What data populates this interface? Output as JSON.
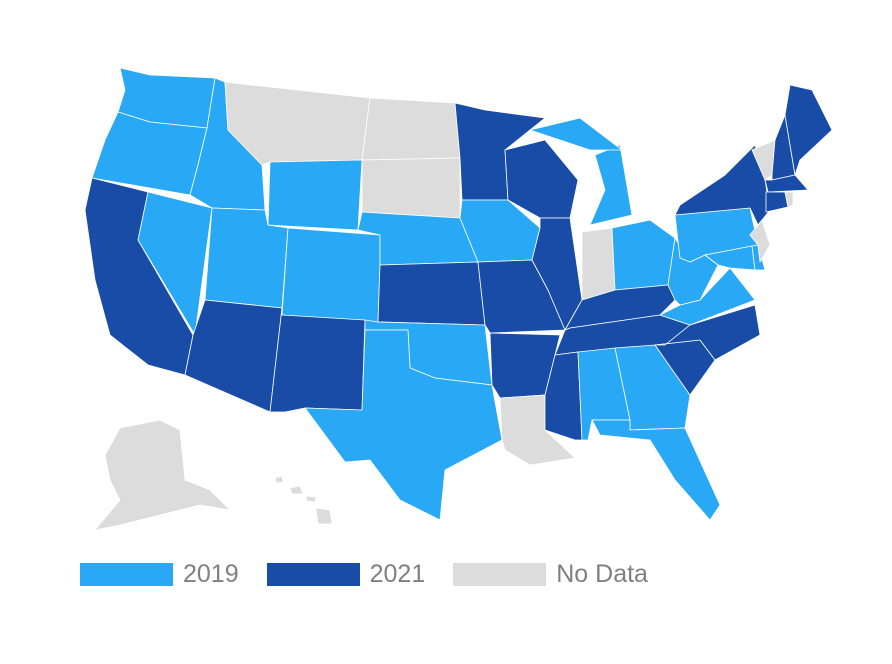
{
  "colors": {
    "2019": "#29a8f5",
    "2021": "#184ca7",
    "No Data": "#dcdcdc"
  },
  "legend": [
    {
      "label": "2019",
      "color": "#29a8f5"
    },
    {
      "label": "2021",
      "color": "#184ca7"
    },
    {
      "label": "No Data",
      "color": "#dcdcdc"
    }
  ],
  "states": [
    {
      "name": "Washington",
      "category": "2019"
    },
    {
      "name": "Oregon",
      "category": "2019"
    },
    {
      "name": "California",
      "category": "2021"
    },
    {
      "name": "Nevada",
      "category": "2019"
    },
    {
      "name": "Idaho",
      "category": "2019"
    },
    {
      "name": "Montana",
      "category": "No Data"
    },
    {
      "name": "Wyoming",
      "category": "2019"
    },
    {
      "name": "Utah",
      "category": "2019"
    },
    {
      "name": "Colorado",
      "category": "2019"
    },
    {
      "name": "Arizona",
      "category": "2021"
    },
    {
      "name": "New Mexico",
      "category": "2021"
    },
    {
      "name": "North Dakota",
      "category": "No Data"
    },
    {
      "name": "South Dakota",
      "category": "No Data"
    },
    {
      "name": "Nebraska",
      "category": "2019"
    },
    {
      "name": "Kansas",
      "category": "2021"
    },
    {
      "name": "Oklahoma",
      "category": "2019"
    },
    {
      "name": "Texas",
      "category": "2019"
    },
    {
      "name": "Minnesota",
      "category": "2021"
    },
    {
      "name": "Iowa",
      "category": "2019"
    },
    {
      "name": "Missouri",
      "category": "2021"
    },
    {
      "name": "Arkansas",
      "category": "2021"
    },
    {
      "name": "Louisiana",
      "category": "No Data"
    },
    {
      "name": "Wisconsin",
      "category": "2021"
    },
    {
      "name": "Illinois",
      "category": "2021"
    },
    {
      "name": "Michigan",
      "category": "2019"
    },
    {
      "name": "Indiana",
      "category": "No Data"
    },
    {
      "name": "Ohio",
      "category": "2019"
    },
    {
      "name": "Kentucky",
      "category": "2021"
    },
    {
      "name": "Tennessee",
      "category": "2021"
    },
    {
      "name": "Mississippi",
      "category": "2021"
    },
    {
      "name": "Alabama",
      "category": "2019"
    },
    {
      "name": "Georgia",
      "category": "2019"
    },
    {
      "name": "Florida",
      "category": "2019"
    },
    {
      "name": "South Carolina",
      "category": "2021"
    },
    {
      "name": "North Carolina",
      "category": "2021"
    },
    {
      "name": "Virginia",
      "category": "2019"
    },
    {
      "name": "West Virginia",
      "category": "2019"
    },
    {
      "name": "Pennsylvania",
      "category": "2019"
    },
    {
      "name": "New York",
      "category": "2021"
    },
    {
      "name": "Maryland",
      "category": "2019"
    },
    {
      "name": "Delaware",
      "category": "2019"
    },
    {
      "name": "New Jersey",
      "category": "No Data"
    },
    {
      "name": "Vermont",
      "category": "No Data"
    },
    {
      "name": "New Hampshire",
      "category": "2021"
    },
    {
      "name": "Maine",
      "category": "2021"
    },
    {
      "name": "Massachusetts",
      "category": "2021"
    },
    {
      "name": "Connecticut",
      "category": "2021"
    },
    {
      "name": "Rhode Island",
      "category": "No Data"
    },
    {
      "name": "Alaska",
      "category": "No Data"
    },
    {
      "name": "Hawaii",
      "category": "No Data"
    }
  ]
}
